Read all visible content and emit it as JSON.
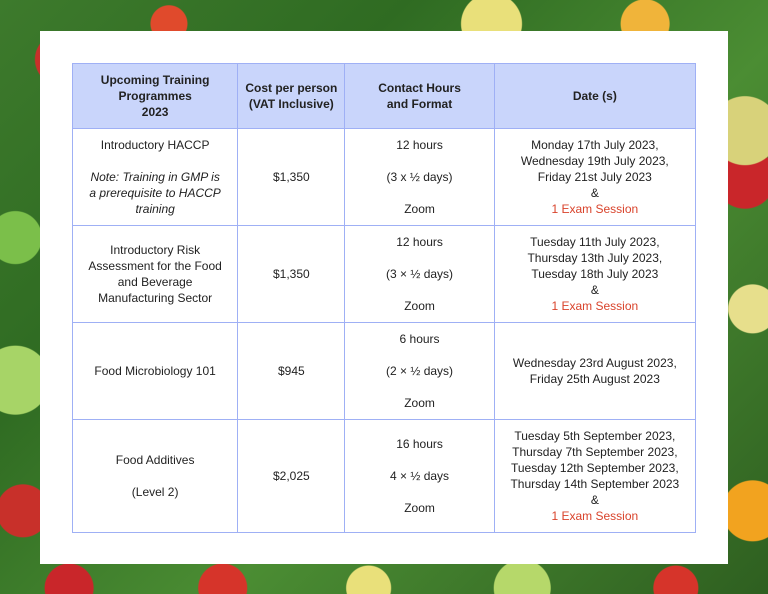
{
  "colors": {
    "header_bg": "#c9d5fb",
    "border": "#9fb0f5",
    "exam_text": "#d9432b"
  },
  "headers": {
    "programme": [
      "Upcoming Training",
      "Programmes",
      "2023"
    ],
    "cost": [
      "Cost per person",
      "(VAT Inclusive)"
    ],
    "hours": [
      "Contact Hours",
      "and Format"
    ],
    "dates": "Date (s)"
  },
  "rows": [
    {
      "programme": "Introductory HACCP",
      "note": [
        "Note: Training in GMP is",
        "a prerequisite to HACCP",
        "training"
      ],
      "cost": "$1,350",
      "hours": "12 hours",
      "format": "(3 x ½ days)",
      "mode": "Zoom",
      "dates": [
        "Monday 17th July 2023,",
        "Wednesday 19th July 2023,",
        "Friday 21st July 2023"
      ],
      "amp": "&",
      "exam": "1 Exam Session"
    },
    {
      "programme": [
        "Introductory Risk",
        "Assessment for the Food",
        "and Beverage",
        "Manufacturing Sector"
      ],
      "cost": "$1,350",
      "hours": "12 hours",
      "format": "(3 × ½ days)",
      "mode": "Zoom",
      "dates": [
        "Tuesday 11th July 2023,",
        "Thursday 13th July 2023,",
        "Tuesday 18th July 2023"
      ],
      "amp": "&",
      "exam": "1 Exam Session"
    },
    {
      "programme": "Food Microbiology 101",
      "cost": "$945",
      "hours": "6 hours",
      "format": "(2 × ½  days)",
      "mode": "Zoom",
      "dates": [
        "Wednesday 23rd August 2023,",
        "Friday 25th August 2023"
      ]
    },
    {
      "programme": "Food Additives",
      "level": "(Level 2)",
      "cost": "$2,025",
      "hours": "16 hours",
      "format": "4 × ½ days",
      "mode": "Zoom",
      "dates": [
        "Tuesday 5th September 2023,",
        "Thursday 7th September 2023,",
        "Tuesday 12th September 2023,",
        "Thursday 14th September 2023"
      ],
      "amp": "&",
      "exam": "1 Exam Session"
    }
  ]
}
